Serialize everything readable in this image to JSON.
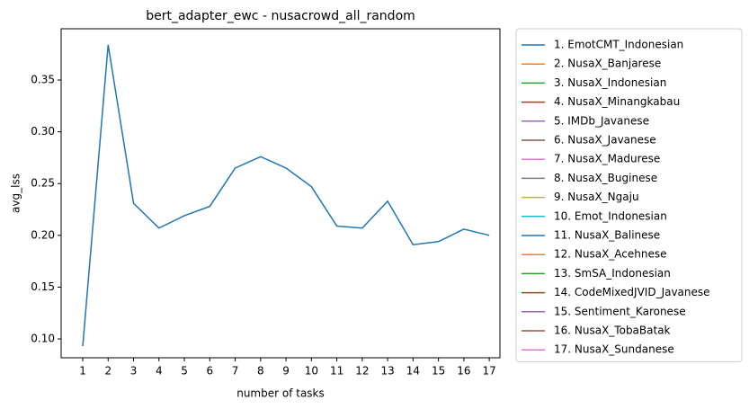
{
  "chart_data": {
    "type": "line",
    "title": "bert_adapter_ewc - nusacrowd_all_random",
    "x_label": "number of tasks",
    "y_label": "avg_lss",
    "x": [
      1,
      2,
      3,
      4,
      5,
      6,
      7,
      8,
      9,
      10,
      11,
      12,
      13,
      14,
      15,
      16,
      17
    ],
    "series": [
      {
        "name": "1. EmotCMT_Indonesian",
        "color": "#1f77b4",
        "values": [
          0.093,
          0.384,
          0.231,
          0.207,
          0.219,
          0.228,
          0.265,
          0.276,
          0.265,
          0.247,
          0.209,
          0.207,
          0.233,
          0.191,
          0.194,
          0.206,
          0.2
        ]
      },
      {
        "name": "2. NusaX_Banjarese",
        "color": "#ff7f0e",
        "values": [
          null,
          null,
          null,
          null,
          null,
          null,
          null,
          null,
          null,
          null,
          null,
          null,
          null,
          null,
          null,
          null,
          null
        ]
      },
      {
        "name": "3. NusaX_Indonesian",
        "color": "#2ca02c",
        "values": [
          null,
          null,
          null,
          null,
          null,
          null,
          null,
          null,
          null,
          null,
          null,
          null,
          null,
          null,
          null,
          null,
          null
        ]
      },
      {
        "name": "4. NusaX_Minangkabau",
        "color": "#d62728",
        "values": [
          null,
          null,
          null,
          null,
          null,
          null,
          null,
          null,
          null,
          null,
          null,
          null,
          null,
          null,
          null,
          null,
          null
        ]
      },
      {
        "name": "5. IMDb_Javanese",
        "color": "#9467bd",
        "values": [
          null,
          null,
          null,
          null,
          null,
          null,
          null,
          null,
          null,
          null,
          null,
          null,
          null,
          null,
          null,
          null,
          null
        ]
      },
      {
        "name": "6. NusaX_Javanese",
        "color": "#8c564b",
        "values": [
          null,
          null,
          null,
          null,
          null,
          null,
          null,
          null,
          null,
          null,
          null,
          null,
          null,
          null,
          null,
          null,
          null
        ]
      },
      {
        "name": "7. NusaX_Madurese",
        "color": "#e377c2",
        "values": [
          null,
          null,
          null,
          null,
          null,
          null,
          null,
          null,
          null,
          null,
          null,
          null,
          null,
          null,
          null,
          null,
          null
        ]
      },
      {
        "name": "8. NusaX_Buginese",
        "color": "#7f7f7f",
        "values": [
          null,
          null,
          null,
          null,
          null,
          null,
          null,
          null,
          null,
          null,
          null,
          null,
          null,
          null,
          null,
          null,
          null
        ]
      },
      {
        "name": "9. NusaX_Ngaju",
        "color": "#bcbd22",
        "values": [
          null,
          null,
          null,
          null,
          null,
          null,
          null,
          null,
          null,
          null,
          null,
          null,
          null,
          null,
          null,
          null,
          null
        ]
      },
      {
        "name": "10. Emot_Indonesian",
        "color": "#17becf",
        "values": [
          null,
          null,
          null,
          null,
          null,
          null,
          null,
          null,
          null,
          null,
          null,
          null,
          null,
          null,
          null,
          null,
          null
        ]
      },
      {
        "name": "11. NusaX_Balinese",
        "color": "#1f77b4",
        "values": [
          null,
          null,
          null,
          null,
          null,
          null,
          null,
          null,
          null,
          null,
          null,
          null,
          null,
          null,
          null,
          null,
          null
        ]
      },
      {
        "name": "12. NusaX_Acehnese",
        "color": "#ff7f0e",
        "values": [
          null,
          null,
          null,
          null,
          null,
          null,
          null,
          null,
          null,
          null,
          null,
          null,
          null,
          null,
          null,
          null,
          null
        ]
      },
      {
        "name": "13. SmSA_Indonesian",
        "color": "#2ca02c",
        "values": [
          null,
          null,
          null,
          null,
          null,
          null,
          null,
          null,
          null,
          null,
          null,
          null,
          null,
          null,
          null,
          null,
          null
        ]
      },
      {
        "name": "14. CodeMixedJVID_Javanese",
        "color": "#d62728",
        "values": [
          null,
          null,
          null,
          null,
          null,
          null,
          null,
          null,
          null,
          null,
          null,
          null,
          null,
          null,
          null,
          null,
          null
        ]
      },
      {
        "name": "15. Sentiment_Karonese",
        "color": "#9467bd",
        "values": [
          null,
          null,
          null,
          null,
          null,
          null,
          null,
          null,
          null,
          null,
          null,
          null,
          null,
          null,
          null,
          null,
          null
        ]
      },
      {
        "name": "16. NusaX_TobaBatak",
        "color": "#8c564b",
        "values": [
          null,
          null,
          null,
          null,
          null,
          null,
          null,
          null,
          null,
          null,
          null,
          null,
          null,
          null,
          null,
          null,
          null
        ]
      },
      {
        "name": "17. NusaX_Sundanese",
        "color": "#e377c2",
        "values": [
          null,
          null,
          null,
          null,
          null,
          null,
          null,
          null,
          null,
          null,
          null,
          null,
          null,
          null,
          null,
          null,
          null
        ]
      }
    ],
    "xlim": [
      0.15,
      17.42
    ],
    "xticks": [
      1,
      2,
      3,
      4,
      5,
      6,
      7,
      8,
      9,
      10,
      11,
      12,
      13,
      14,
      15,
      16,
      17
    ],
    "ylim": [
      0.0818,
      0.3995
    ],
    "yticks": [
      {
        "value": 0.1,
        "label": "0.10"
      },
      {
        "value": 0.15,
        "label": "0.15"
      },
      {
        "value": 0.2,
        "label": "0.20"
      },
      {
        "value": 0.25,
        "label": "0.25"
      },
      {
        "value": 0.3,
        "label": "0.30"
      },
      {
        "value": 0.35,
        "label": "0.35"
      }
    ],
    "grid": false,
    "legend": "outside-right"
  }
}
